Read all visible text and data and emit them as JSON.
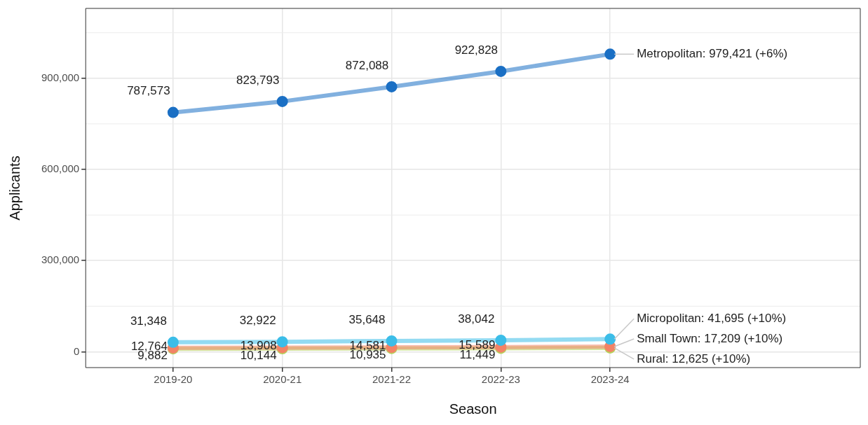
{
  "chart_data": {
    "type": "line",
    "xlabel": "Season",
    "ylabel": "Applicants",
    "categories": [
      "2019-20",
      "2020-21",
      "2021-22",
      "2022-23",
      "2023-24"
    ],
    "ylim": [
      -52000,
      1130000
    ],
    "yticks": [
      {
        "value": 0,
        "label": "0"
      },
      {
        "value": 300000,
        "label": "300,000"
      },
      {
        "value": 600000,
        "label": "600,000"
      },
      {
        "value": 900000,
        "label": "900,000"
      }
    ],
    "grid": true,
    "legend": false,
    "marker": "circle",
    "line_style": "solid",
    "series": [
      {
        "color": "#1a6fc4",
        "values": [
          787573,
          823793,
          872088,
          922828,
          979421
        ],
        "value_labels": [
          "787,573",
          "823,793",
          "872,088",
          "922,828",
          null
        ]
      },
      {
        "color": "#3bbde8",
        "values": [
          31348,
          32922,
          35648,
          38042,
          41695
        ],
        "value_labels": [
          "31,348",
          "32,922",
          "35,648",
          "38,042",
          null
        ]
      },
      {
        "color": "#f28366",
        "values": [
          12764,
          13908,
          14581,
          15589,
          17209
        ],
        "value_labels": [
          "12,764",
          "13,908",
          "14,581",
          "15,589",
          null
        ]
      },
      {
        "color": "#b5d35a",
        "values": [
          9882,
          10144,
          10935,
          11449,
          12625
        ],
        "value_labels": [
          "9,882",
          "10,144",
          "10,935",
          "11,449",
          null
        ]
      }
    ],
    "annotations": [
      {
        "text": "Metropolitan: 979,421 (+6%)",
        "x": "2023-24",
        "y": 979421
      },
      {
        "text": "Micropolitan: 41,695 (+10%)",
        "x": "2023-24",
        "y": 41695
      },
      {
        "text": "Small Town: 17,209 (+10%)",
        "x": "2023-24",
        "y": 17209
      },
      {
        "text": "Rural: 12,625 (+10%)",
        "x": "2023-24",
        "y": 12625
      }
    ]
  }
}
